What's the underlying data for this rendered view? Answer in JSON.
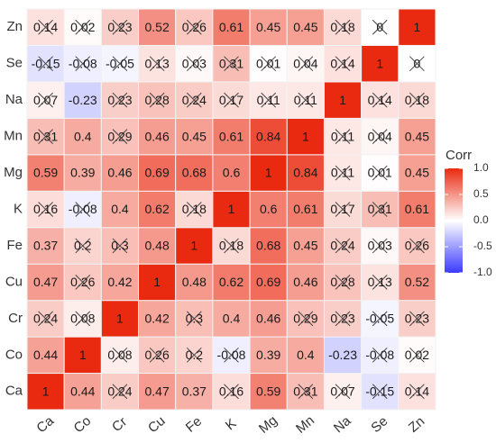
{
  "chart_data": {
    "type": "heatmap",
    "legend_title": "Corr",
    "categories": [
      "Ca",
      "Co",
      "Cr",
      "Cu",
      "Fe",
      "K",
      "Mg",
      "Mn",
      "Na",
      "Se",
      "Zn"
    ],
    "z": [
      [
        1,
        0.44,
        0.24,
        0.47,
        0.37,
        0.16,
        0.59,
        0.31,
        0.07,
        -0.15,
        0.14
      ],
      [
        0.44,
        1,
        0.08,
        0.26,
        0.2,
        -0.08,
        0.39,
        0.4,
        -0.23,
        -0.08,
        0.02
      ],
      [
        0.24,
        0.08,
        1,
        0.42,
        0.3,
        0.4,
        0.46,
        0.29,
        0.23,
        -0.05,
        0.23
      ],
      [
        0.47,
        0.26,
        0.42,
        1,
        0.48,
        0.62,
        0.69,
        0.46,
        0.28,
        0.13,
        0.52
      ],
      [
        0.37,
        0.2,
        0.3,
        0.48,
        1,
        0.18,
        0.68,
        0.45,
        0.24,
        0.03,
        0.26
      ],
      [
        0.16,
        -0.08,
        0.4,
        0.62,
        0.18,
        1,
        0.6,
        0.61,
        0.17,
        0.31,
        0.61
      ],
      [
        0.59,
        0.39,
        0.46,
        0.69,
        0.68,
        0.6,
        1,
        0.84,
        0.11,
        0.01,
        0.45
      ],
      [
        0.31,
        0.4,
        0.29,
        0.46,
        0.45,
        0.61,
        0.84,
        1,
        0.11,
        0.04,
        0.45
      ],
      [
        0.07,
        -0.23,
        0.23,
        0.28,
        0.24,
        0.17,
        0.11,
        0.11,
        1,
        0.14,
        0.18
      ],
      [
        -0.15,
        -0.08,
        -0.05,
        0.13,
        0.03,
        0.31,
        0.01,
        0.04,
        0.14,
        1,
        0
      ],
      [
        0.14,
        0.02,
        0.23,
        0.52,
        0.26,
        0.61,
        0.45,
        0.45,
        0.18,
        0,
        1
      ]
    ],
    "insignificant": [
      [
        false,
        false,
        true,
        false,
        false,
        true,
        false,
        true,
        true,
        true,
        true
      ],
      [
        false,
        false,
        true,
        true,
        true,
        true,
        false,
        false,
        false,
        true,
        true
      ],
      [
        true,
        true,
        false,
        false,
        true,
        false,
        false,
        true,
        true,
        true,
        true
      ],
      [
        false,
        true,
        false,
        false,
        false,
        false,
        false,
        false,
        true,
        true,
        false
      ],
      [
        false,
        true,
        true,
        false,
        false,
        true,
        false,
        false,
        true,
        true,
        true
      ],
      [
        true,
        true,
        false,
        false,
        true,
        false,
        false,
        false,
        true,
        true,
        false
      ],
      [
        false,
        false,
        false,
        false,
        false,
        false,
        false,
        false,
        true,
        true,
        false
      ],
      [
        true,
        false,
        true,
        false,
        false,
        false,
        false,
        false,
        true,
        true,
        false
      ],
      [
        true,
        false,
        true,
        true,
        true,
        true,
        true,
        true,
        false,
        true,
        true
      ],
      [
        true,
        true,
        true,
        true,
        true,
        true,
        true,
        true,
        true,
        false,
        true
      ],
      [
        true,
        true,
        true,
        false,
        true,
        false,
        false,
        false,
        true,
        true,
        false
      ]
    ],
    "zlim": [
      -1,
      1
    ],
    "colors": [
      "#3b3bff",
      "#ffffff",
      "#ea2a10"
    ],
    "zticks": [
      {
        "value": 1,
        "label": "1.0"
      },
      0.5,
      {
        "value": 0,
        "label": "0.0"
      },
      -0.5,
      {
        "value": -1,
        "label": "-1.0"
      }
    ]
  }
}
